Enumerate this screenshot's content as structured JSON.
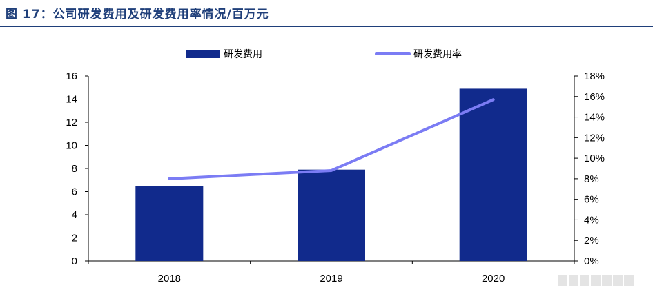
{
  "figure_title": "图 17：公司研发费用及研发费用率情况/百万元",
  "colors": {
    "bar": "#112a8c",
    "line": "#7b7cf4",
    "title": "#1f3f7a"
  },
  "chart_data": {
    "type": "bar",
    "title": "",
    "categories": [
      "2018",
      "2019",
      "2020"
    ],
    "series": [
      {
        "name": "研发费用",
        "type": "bar",
        "axis": "left",
        "values": [
          6.5,
          7.9,
          14.9
        ]
      },
      {
        "name": "研发费用率",
        "type": "line",
        "axis": "right",
        "values": [
          0.08,
          0.088,
          0.157
        ]
      }
    ],
    "y_left": {
      "min": 0,
      "max": 16,
      "step": 2,
      "ticks": [
        "0",
        "2",
        "4",
        "6",
        "8",
        "10",
        "12",
        "14",
        "16"
      ]
    },
    "y_right": {
      "min": 0,
      "max": 0.18,
      "step": 0.02,
      "ticks": [
        "0%",
        "2%",
        "4%",
        "6%",
        "8%",
        "10%",
        "12%",
        "14%",
        "16%",
        "18%"
      ]
    },
    "legend": {
      "placement": "top-center",
      "entries": [
        "研发费用",
        "研发费用率"
      ]
    },
    "grid": false
  }
}
